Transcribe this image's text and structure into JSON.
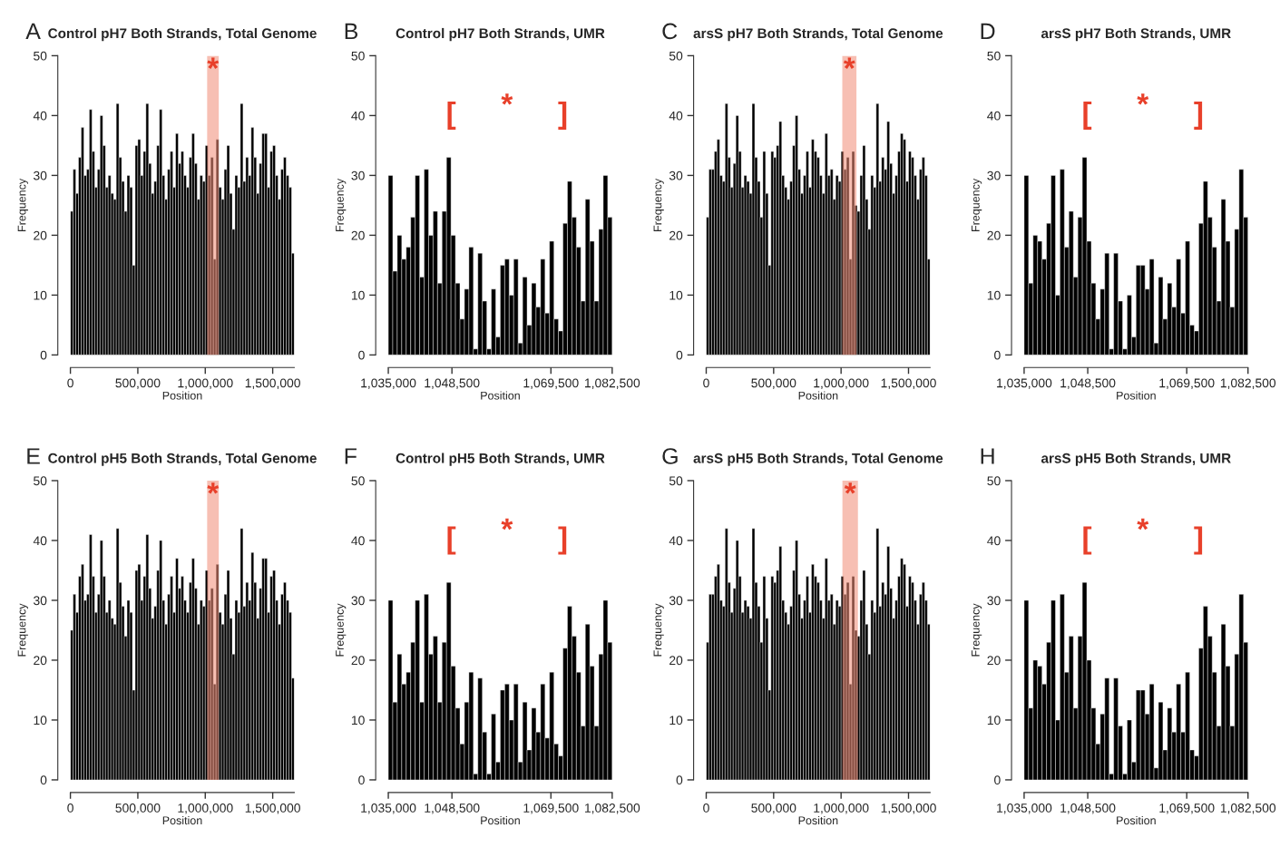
{
  "chart_data": [
    {
      "type": "histogram",
      "title": "Control pH7 Both Strands, Total Genome",
      "xlabel": "Position",
      "ylabel": "Frequency",
      "color": "#000000",
      "bins": [
        0,
        20000,
        40000,
        60000,
        80000,
        100000,
        120000,
        140000,
        160000,
        180000,
        200000,
        220000,
        240000,
        260000,
        280000,
        300000,
        320000,
        340000,
        360000,
        380000,
        400000,
        420000,
        440000,
        460000,
        480000,
        500000,
        520000,
        540000,
        560000,
        580000,
        600000,
        620000,
        640000,
        660000,
        680000,
        700000,
        720000,
        740000,
        760000,
        780000,
        800000,
        820000,
        840000,
        860000,
        880000,
        900000,
        920000,
        940000,
        960000,
        980000,
        1000000,
        1020000,
        1040000,
        1060000,
        1080000,
        1100000,
        1120000,
        1140000,
        1160000,
        1180000,
        1200000,
        1220000,
        1240000,
        1260000,
        1280000,
        1300000,
        1320000,
        1340000,
        1360000,
        1380000,
        1400000,
        1420000,
        1440000,
        1460000,
        1480000,
        1500000,
        1520000,
        1540000,
        1560000,
        1580000,
        1600000,
        1620000,
        1640000,
        1660000
      ],
      "values": [
        24,
        31,
        27,
        33,
        38,
        30,
        31,
        41,
        34,
        28,
        31,
        40,
        35,
        28,
        30,
        27,
        26,
        42,
        33,
        29,
        24,
        30,
        28,
        15,
        35,
        36,
        30,
        34,
        42,
        32,
        27,
        29,
        35,
        41,
        30,
        26,
        31,
        34,
        28,
        37,
        32,
        34,
        30,
        28,
        33,
        37,
        32,
        26,
        30,
        29,
        35,
        30,
        33,
        16,
        36,
        28,
        26,
        31,
        35,
        27,
        21,
        30,
        28,
        42,
        29,
        33,
        30,
        38,
        33,
        27,
        32,
        37,
        37,
        28,
        34,
        35,
        30,
        26,
        31,
        33,
        30,
        28,
        17
      ],
      "xlim": [
        0,
        1660000
      ],
      "ylim": [
        0,
        50
      ],
      "xticks": [
        0,
        {
          "value": 500000,
          "label": "500,000"
        },
        {
          "value": 1000000,
          "label": "1,000,000"
        },
        {
          "value": 1500000,
          "label": "1,500,000"
        }
      ],
      "yticks": [
        0,
        10,
        20,
        30,
        40,
        50
      ],
      "bands": [
        {
          "axis": "x",
          "from": 1014000,
          "to": 1100000,
          "color": "#f08a74"
        }
      ],
      "annotations": [
        "A",
        "*"
      ]
    },
    {
      "type": "histogram",
      "title": "Control pH7 Both Strands, UMR",
      "xlabel": "Position",
      "ylabel": "Frequency",
      "color": "#000000",
      "bins": [
        1035000,
        1035950,
        1036900,
        1037850,
        1038800,
        1039750,
        1040700,
        1041650,
        1042600,
        1043550,
        1044500,
        1045450,
        1046400,
        1047350,
        1048300,
        1049250,
        1050200,
        1051150,
        1052100,
        1053050,
        1054000,
        1054950,
        1055900,
        1056850,
        1057800,
        1058750,
        1059700,
        1060650,
        1061600,
        1062550,
        1063500,
        1064450,
        1065400,
        1066350,
        1067300,
        1068250,
        1069200,
        1070150,
        1071100,
        1072050,
        1073000,
        1073950,
        1074900,
        1075850,
        1076800,
        1077750,
        1078700,
        1079650,
        1080600,
        1081550,
        1082500
      ],
      "values": [
        30,
        14,
        20,
        16,
        18,
        23,
        30,
        13,
        31,
        20,
        24,
        12,
        24,
        33,
        20,
        12,
        6,
        11,
        18,
        1,
        17,
        9,
        1,
        11,
        3,
        15,
        16,
        10,
        16,
        2,
        13,
        5,
        12,
        8,
        16,
        7,
        19,
        6,
        4,
        22,
        29,
        23,
        18,
        9,
        26,
        19,
        9,
        21,
        30,
        23
      ],
      "xlim": [
        1035000,
        1082500
      ],
      "ylim": [
        0,
        50
      ],
      "xticks": [
        {
          "value": 1035000,
          "label": "1,035,000"
        },
        {
          "value": 1048500,
          "label": "1,048,500"
        },
        {
          "value": 1069500,
          "label": "1,069,500"
        },
        {
          "value": 1082500,
          "label": "1,082,500"
        }
      ],
      "yticks": [
        0,
        10,
        20,
        30,
        40,
        50
      ],
      "annotations": [
        "B",
        "[",
        "*",
        "]"
      ]
    },
    {
      "type": "histogram",
      "title": "arsS pH7 Both Strands, Total Genome",
      "xlabel": "Position",
      "ylabel": "Frequency",
      "color": "#000000",
      "bins": [
        0,
        20000,
        40000,
        60000,
        80000,
        100000,
        120000,
        140000,
        160000,
        180000,
        200000,
        220000,
        240000,
        260000,
        280000,
        300000,
        320000,
        340000,
        360000,
        380000,
        400000,
        420000,
        440000,
        460000,
        480000,
        500000,
        520000,
        540000,
        560000,
        580000,
        600000,
        620000,
        640000,
        660000,
        680000,
        700000,
        720000,
        740000,
        760000,
        780000,
        800000,
        820000,
        840000,
        860000,
        880000,
        900000,
        920000,
        940000,
        960000,
        980000,
        1000000,
        1020000,
        1040000,
        1060000,
        1080000,
        1100000,
        1120000,
        1140000,
        1160000,
        1180000,
        1200000,
        1220000,
        1240000,
        1260000,
        1280000,
        1300000,
        1320000,
        1340000,
        1360000,
        1380000,
        1400000,
        1420000,
        1440000,
        1460000,
        1480000,
        1500000,
        1520000,
        1540000,
        1560000,
        1580000,
        1600000,
        1620000,
        1640000,
        1660000
      ],
      "values": [
        23,
        31,
        31,
        34,
        36,
        30,
        29,
        42,
        33,
        28,
        32,
        40,
        34,
        28,
        30,
        29,
        27,
        42,
        33,
        29,
        23,
        34,
        27,
        15,
        34,
        33,
        35,
        39,
        30,
        28,
        26,
        29,
        35,
        40,
        31,
        27,
        30,
        34,
        28,
        36,
        34,
        33,
        30,
        27,
        37,
        30,
        31,
        26,
        30,
        29,
        34,
        31,
        33,
        16,
        34,
        25,
        24,
        30,
        35,
        26,
        21,
        30,
        28,
        42,
        29,
        33,
        31,
        39,
        32,
        27,
        30,
        34,
        37,
        36,
        29,
        34,
        33,
        30,
        26,
        31,
        33,
        30,
        16
      ],
      "xlim": [
        0,
        1660000
      ],
      "ylim": [
        0,
        50
      ],
      "xticks": [
        0,
        {
          "value": 500000,
          "label": "500,000"
        },
        {
          "value": 1000000,
          "label": "1,000,000"
        },
        {
          "value": 1500000,
          "label": "1,500,000"
        }
      ],
      "yticks": [
        0,
        10,
        20,
        30,
        40,
        50
      ],
      "bands": [
        {
          "axis": "x",
          "from": 1009000,
          "to": 1114000,
          "color": "#f08a74"
        }
      ],
      "annotations": [
        "C",
        "*"
      ]
    },
    {
      "type": "histogram",
      "title": "arsS pH7 Both Strands, UMR",
      "xlabel": "Position",
      "ylabel": "Frequency",
      "color": "#000000",
      "bins": [
        1035000,
        1035950,
        1036900,
        1037850,
        1038800,
        1039750,
        1040700,
        1041650,
        1042600,
        1043550,
        1044500,
        1045450,
        1046400,
        1047350,
        1048300,
        1049250,
        1050200,
        1051150,
        1052100,
        1053050,
        1054000,
        1054950,
        1055900,
        1056850,
        1057800,
        1058750,
        1059700,
        1060650,
        1061600,
        1062550,
        1063500,
        1064450,
        1065400,
        1066350,
        1067300,
        1068250,
        1069200,
        1070150,
        1071100,
        1072050,
        1073000,
        1073950,
        1074900,
        1075850,
        1076800,
        1077750,
        1078700,
        1079650,
        1080600,
        1081550,
        1082500
      ],
      "values": [
        30,
        12,
        20,
        19,
        16,
        22,
        30,
        10,
        31,
        18,
        24,
        13,
        23,
        33,
        19,
        12,
        6,
        11,
        17,
        1,
        17,
        9,
        1,
        10,
        3,
        15,
        15,
        11,
        16,
        2,
        13,
        6,
        12,
        8,
        16,
        7,
        19,
        5,
        4,
        22,
        29,
        23,
        18,
        9,
        26,
        19,
        8,
        21,
        31,
        23
      ],
      "xlim": [
        1035000,
        1082500
      ],
      "ylim": [
        0,
        50
      ],
      "xticks": [
        {
          "value": 1035000,
          "label": "1,035,000"
        },
        {
          "value": 1048500,
          "label": "1,048,500"
        },
        {
          "value": 1069500,
          "label": "1,069,500"
        },
        {
          "value": 1082500,
          "label": "1,082,500"
        }
      ],
      "yticks": [
        0,
        10,
        20,
        30,
        40,
        50
      ],
      "annotations": [
        "D",
        "[",
        "*",
        "]"
      ]
    },
    {
      "type": "histogram",
      "title": "Control pH5 Both Strands, Total Genome",
      "xlabel": "Position",
      "ylabel": "Frequency",
      "color": "#000000",
      "bins": [
        0,
        20000,
        40000,
        60000,
        80000,
        100000,
        120000,
        140000,
        160000,
        180000,
        200000,
        220000,
        240000,
        260000,
        280000,
        300000,
        320000,
        340000,
        360000,
        380000,
        400000,
        420000,
        440000,
        460000,
        480000,
        500000,
        520000,
        540000,
        560000,
        580000,
        600000,
        620000,
        640000,
        660000,
        680000,
        700000,
        720000,
        740000,
        760000,
        780000,
        800000,
        820000,
        840000,
        860000,
        880000,
        900000,
        920000,
        940000,
        960000,
        980000,
        1000000,
        1020000,
        1040000,
        1060000,
        1080000,
        1100000,
        1120000,
        1140000,
        1160000,
        1180000,
        1200000,
        1220000,
        1240000,
        1260000,
        1280000,
        1300000,
        1320000,
        1340000,
        1360000,
        1380000,
        1400000,
        1420000,
        1440000,
        1460000,
        1480000,
        1500000,
        1520000,
        1540000,
        1560000,
        1580000,
        1600000,
        1620000,
        1640000,
        1660000
      ],
      "values": [
        25,
        31,
        28,
        34,
        36,
        30,
        31,
        41,
        34,
        28,
        31,
        40,
        34,
        28,
        30,
        27,
        26,
        42,
        33,
        29,
        24,
        30,
        28,
        15,
        35,
        36,
        30,
        34,
        41,
        32,
        27,
        29,
        35,
        40,
        30,
        26,
        31,
        34,
        28,
        37,
        32,
        34,
        30,
        28,
        33,
        37,
        32,
        26,
        30,
        29,
        35,
        30,
        32,
        16,
        36,
        28,
        26,
        31,
        35,
        27,
        21,
        30,
        28,
        42,
        29,
        33,
        30,
        38,
        33,
        27,
        32,
        37,
        37,
        28,
        34,
        35,
        30,
        26,
        31,
        33,
        30,
        28,
        17
      ],
      "xlim": [
        0,
        1660000
      ],
      "ylim": [
        0,
        50
      ],
      "xticks": [
        0,
        {
          "value": 500000,
          "label": "500,000"
        },
        {
          "value": 1000000,
          "label": "1,000,000"
        },
        {
          "value": 1500000,
          "label": "1,500,000"
        }
      ],
      "yticks": [
        0,
        10,
        20,
        30,
        40,
        50
      ],
      "bands": [
        {
          "axis": "x",
          "from": 1014000,
          "to": 1100000,
          "color": "#f08a74"
        }
      ],
      "annotations": [
        "E",
        "*"
      ]
    },
    {
      "type": "histogram",
      "title": "Control pH5 Both Strands, UMR",
      "xlabel": "Position",
      "ylabel": "Frequency",
      "color": "#000000",
      "bins": [
        1035000,
        1035950,
        1036900,
        1037850,
        1038800,
        1039750,
        1040700,
        1041650,
        1042600,
        1043550,
        1044500,
        1045450,
        1046400,
        1047350,
        1048300,
        1049250,
        1050200,
        1051150,
        1052100,
        1053050,
        1054000,
        1054950,
        1055900,
        1056850,
        1057800,
        1058750,
        1059700,
        1060650,
        1061600,
        1062550,
        1063500,
        1064450,
        1065400,
        1066350,
        1067300,
        1068250,
        1069200,
        1070150,
        1071100,
        1072050,
        1073000,
        1073950,
        1074900,
        1075850,
        1076800,
        1077750,
        1078700,
        1079650,
        1080600,
        1081550,
        1082500
      ],
      "values": [
        30,
        13,
        21,
        16,
        18,
        23,
        30,
        13,
        31,
        21,
        24,
        13,
        23,
        33,
        19,
        12,
        6,
        13,
        18,
        1,
        17,
        8,
        1,
        11,
        3,
        15,
        16,
        10,
        16,
        3,
        13,
        5,
        12,
        8,
        16,
        7,
        18,
        6,
        4,
        22,
        29,
        24,
        18,
        9,
        26,
        19,
        9,
        21,
        30,
        23
      ],
      "xlim": [
        1035000,
        1082500
      ],
      "ylim": [
        0,
        50
      ],
      "xticks": [
        {
          "value": 1035000,
          "label": "1,035,000"
        },
        {
          "value": 1048500,
          "label": "1,048,500"
        },
        {
          "value": 1069500,
          "label": "1,069,500"
        },
        {
          "value": 1082500,
          "label": "1,082,500"
        }
      ],
      "yticks": [
        0,
        10,
        20,
        30,
        40,
        50
      ],
      "annotations": [
        "F",
        "[",
        "*",
        "]"
      ]
    },
    {
      "type": "histogram",
      "title": "arsS pH5 Both Strands, Total Genome",
      "xlabel": "Position",
      "ylabel": "Frequency",
      "color": "#000000",
      "bins": [
        0,
        20000,
        40000,
        60000,
        80000,
        100000,
        120000,
        140000,
        160000,
        180000,
        200000,
        220000,
        240000,
        260000,
        280000,
        300000,
        320000,
        340000,
        360000,
        380000,
        400000,
        420000,
        440000,
        460000,
        480000,
        500000,
        520000,
        540000,
        560000,
        580000,
        600000,
        620000,
        640000,
        660000,
        680000,
        700000,
        720000,
        740000,
        760000,
        780000,
        800000,
        820000,
        840000,
        860000,
        880000,
        900000,
        920000,
        940000,
        960000,
        980000,
        1000000,
        1020000,
        1040000,
        1060000,
        1080000,
        1100000,
        1120000,
        1140000,
        1160000,
        1180000,
        1200000,
        1220000,
        1240000,
        1260000,
        1280000,
        1300000,
        1320000,
        1340000,
        1360000,
        1380000,
        1400000,
        1420000,
        1440000,
        1460000,
        1480000,
        1500000,
        1520000,
        1540000,
        1560000,
        1580000,
        1600000,
        1620000,
        1640000,
        1660000
      ],
      "values": [
        23,
        31,
        31,
        34,
        36,
        30,
        29,
        42,
        33,
        28,
        32,
        40,
        34,
        28,
        30,
        29,
        27,
        42,
        33,
        29,
        23,
        34,
        27,
        15,
        34,
        33,
        35,
        39,
        30,
        28,
        26,
        29,
        35,
        40,
        31,
        27,
        30,
        34,
        28,
        36,
        34,
        33,
        30,
        27,
        37,
        30,
        31,
        26,
        30,
        29,
        34,
        31,
        33,
        16,
        34,
        25,
        24,
        30,
        35,
        26,
        21,
        30,
        28,
        42,
        29,
        33,
        31,
        39,
        32,
        27,
        30,
        34,
        37,
        36,
        29,
        34,
        33,
        30,
        26,
        31,
        33,
        30,
        26
      ],
      "xlim": [
        0,
        1660000
      ],
      "ylim": [
        0,
        50
      ],
      "xticks": [
        0,
        {
          "value": 500000,
          "label": "500,000"
        },
        {
          "value": 1000000,
          "label": "1,000,000"
        },
        {
          "value": 1500000,
          "label": "1,500,000"
        }
      ],
      "yticks": [
        0,
        10,
        20,
        30,
        40,
        50
      ],
      "bands": [
        {
          "axis": "x",
          "from": 1010000,
          "to": 1125000,
          "color": "#f08a74"
        }
      ],
      "annotations": [
        "G",
        "*"
      ]
    },
    {
      "type": "histogram",
      "title": "arsS pH5 Both Strands, UMR",
      "xlabel": "Position",
      "ylabel": "Frequency",
      "color": "#000000",
      "bins": [
        1035000,
        1035950,
        1036900,
        1037850,
        1038800,
        1039750,
        1040700,
        1041650,
        1042600,
        1043550,
        1044500,
        1045450,
        1046400,
        1047350,
        1048300,
        1049250,
        1050200,
        1051150,
        1052100,
        1053050,
        1054000,
        1054950,
        1055900,
        1056850,
        1057800,
        1058750,
        1059700,
        1060650,
        1061600,
        1062550,
        1063500,
        1064450,
        1065400,
        1066350,
        1067300,
        1068250,
        1069200,
        1070150,
        1071100,
        1072050,
        1073000,
        1073950,
        1074900,
        1075850,
        1076800,
        1077750,
        1078700,
        1079650,
        1080600,
        1081550,
        1082500
      ],
      "values": [
        30,
        12,
        20,
        19,
        16,
        23,
        30,
        10,
        31,
        18,
        24,
        12,
        24,
        33,
        20,
        12,
        6,
        11,
        17,
        1,
        17,
        9,
        1,
        10,
        3,
        15,
        15,
        11,
        16,
        2,
        13,
        5,
        12,
        8,
        16,
        8,
        18,
        5,
        4,
        22,
        29,
        24,
        18,
        9,
        26,
        19,
        9,
        21,
        31,
        23
      ],
      "xlim": [
        1035000,
        1082500
      ],
      "ylim": [
        0,
        50
      ],
      "xticks": [
        {
          "value": 1035000,
          "label": "1,035,000"
        },
        {
          "value": 1048500,
          "label": "1,048,500"
        },
        {
          "value": 1069500,
          "label": "1,069,500"
        },
        {
          "value": 1082500,
          "label": "1,082,500"
        }
      ],
      "yticks": [
        0,
        10,
        20,
        30,
        40,
        50
      ],
      "annotations": [
        "H",
        "[",
        "*",
        "]"
      ]
    }
  ]
}
